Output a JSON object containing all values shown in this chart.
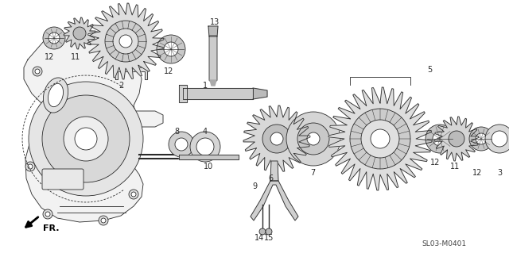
{
  "bg_color": "#ffffff",
  "diagram_code": "SL03-M0401",
  "line_color": "#2a2a2a",
  "fill_light": "#e8e8e8",
  "fill_mid": "#cccccc",
  "fill_dark": "#aaaaaa",
  "font_size": 7.0
}
